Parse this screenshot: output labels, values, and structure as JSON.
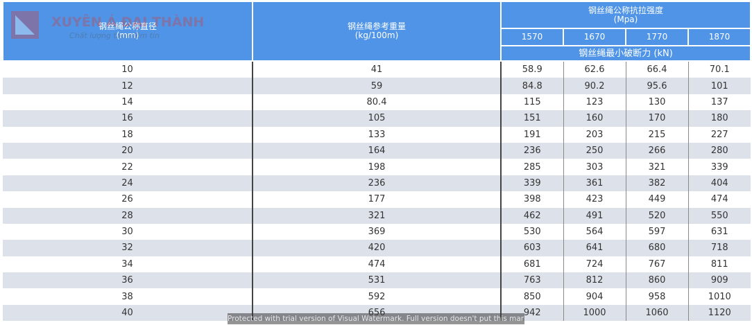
{
  "watermark": {
    "brand": "XUYÊN Á ĐẠI THÀNH",
    "slogan": "Chất lượng tạo niềm tin",
    "notice": "Protected with trial version of Visual Watermark. Full version doesn't put this mark"
  },
  "header": {
    "col1": {
      "title": "钢丝绳公称直径",
      "unit": "(mm)"
    },
    "col2": {
      "title": "钢丝绳参考重量",
      "unit": "(kg/100m)"
    },
    "group": {
      "title": "钢丝绳公称抗拉强度",
      "unit": "(Mpa)",
      "grades": [
        1570,
        1670,
        1770,
        1870
      ],
      "subtitle": "钢丝绳最小破断力 (kN)"
    }
  },
  "table": {
    "rows": [
      [
        10,
        41,
        58.9,
        62.6,
        66.4,
        70.1
      ],
      [
        12,
        59,
        84.8,
        90.2,
        95.6,
        101
      ],
      [
        14,
        80.4,
        115,
        123,
        130,
        137
      ],
      [
        16,
        105,
        151,
        160,
        170,
        180
      ],
      [
        18,
        133,
        191,
        203,
        215,
        227
      ],
      [
        20,
        164,
        236,
        250,
        266,
        280
      ],
      [
        22,
        198,
        285,
        303,
        321,
        339
      ],
      [
        24,
        236,
        339,
        361,
        382,
        404
      ],
      [
        26,
        177,
        398,
        423,
        449,
        474
      ],
      [
        28,
        321,
        462,
        491,
        520,
        550
      ],
      [
        30,
        369,
        530,
        564,
        597,
        631
      ],
      [
        32,
        420,
        603,
        641,
        680,
        718
      ],
      [
        34,
        474,
        681,
        724,
        767,
        811
      ],
      [
        36,
        531,
        763,
        812,
        860,
        909
      ],
      [
        38,
        592,
        850,
        904,
        958,
        1010
      ],
      [
        40,
        656,
        942,
        1000,
        1060,
        1120
      ]
    ]
  }
}
